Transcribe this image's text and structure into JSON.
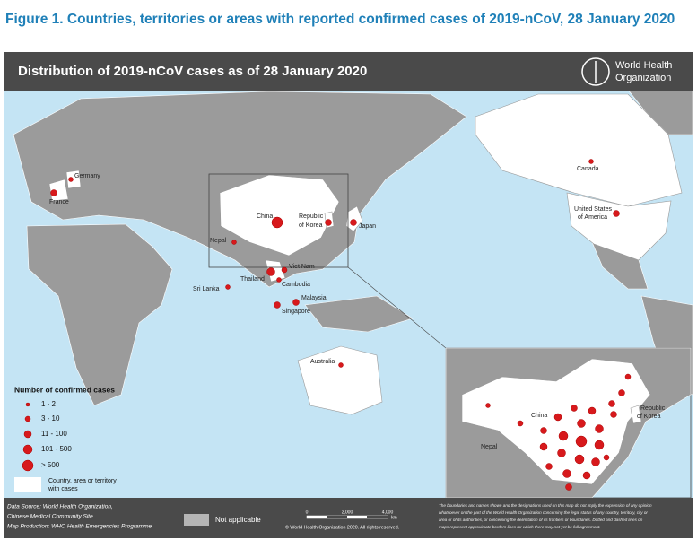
{
  "figure_title": "Figure 1. Countries, territories or areas with reported confirmed cases of 2019-nCoV, 28 January 2020",
  "map": {
    "title": "Distribution of 2019-nCoV cases as of 28 January 2020",
    "logo_text": [
      "World Health",
      "Organization"
    ],
    "labels": {
      "germany": "Germany",
      "france": "France",
      "china": "China",
      "korea": [
        "Republic",
        "of Korea"
      ],
      "japan": "Japan",
      "nepal": "Nepal",
      "viet_nam": "Viet Nam",
      "thailand": "Thailand",
      "cambodia": "Cambodia",
      "sri_lanka": "Sri Lanka",
      "malaysia": "Malaysia",
      "singapore": "Singapore",
      "australia": "Australia",
      "canada": "Canada",
      "usa": [
        "United States",
        "of America"
      ]
    },
    "inset_labels": {
      "china": "China",
      "nepal": "Nepal",
      "korea": [
        "Republic",
        "of Korea"
      ]
    }
  },
  "legend": {
    "title": "Number of confirmed cases",
    "items": [
      "1 - 2",
      "3 - 10",
      "11 - 100",
      "101 - 500",
      "> 500"
    ],
    "cases_area": [
      "Country, area or territory",
      "with cases"
    ],
    "not_applicable": "Not applicable"
  },
  "footer": {
    "source": [
      "Data Source: World Health Organization,",
      "Chinese Medical Community Site",
      "Map Production: WHO Health Emergencies Programme"
    ],
    "scale": [
      "0",
      "2,000",
      "4,000",
      "km"
    ],
    "copyright": "© World Health Organization 2020. All rights reserved.",
    "disclaimer": [
      "The boundaries and names shown and the designations used on this map do not imply the expression of any opinion",
      "whatsoever on the part of the World Health Organization concerning the legal status of any country, territory, city or",
      "area or of its authorities, or concerning the delimitation of its frontiers or boundaries. Dotted and dashed lines on",
      "maps represent approximate borders lines for which there may not yet be full agreement."
    ]
  }
}
